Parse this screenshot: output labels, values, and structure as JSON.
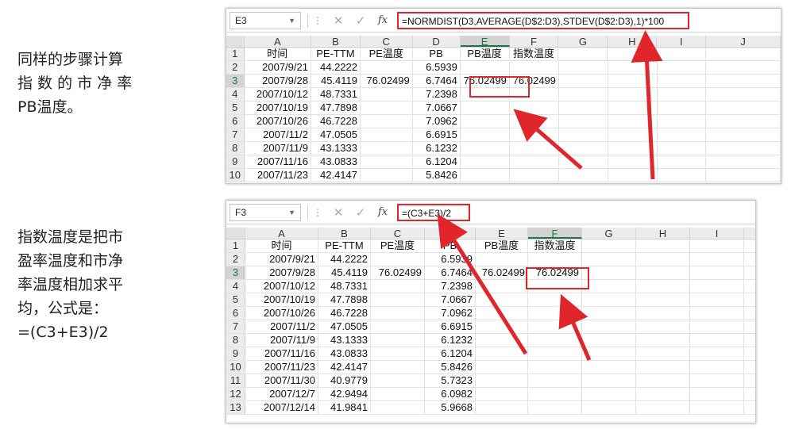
{
  "left_captions": {
    "first": "同样的步骤计算\n指 数 的 市 净 率\nPB温度。",
    "second": "指数温度是把市\n盈率温度和市净\n率温度相加求平\n均，公式是：\n=(C3+E3)/2"
  },
  "top_sheet": {
    "name_box": "E3",
    "formula": "=NORMDIST(D3,AVERAGE(D$2:D3),STDEV(D$2:D3),1)*100",
    "columns": [
      "A",
      "B",
      "C",
      "D",
      "E",
      "F",
      "G",
      "H",
      "I",
      "J"
    ],
    "selected_col": "E",
    "selected_row": "3",
    "rows": [
      {
        "n": "1",
        "a": "时间",
        "b": "PE-TTM",
        "c": "PE温度",
        "d": "PB",
        "e": "PB温度",
        "f": "指数温度"
      },
      {
        "n": "2",
        "a": "2007/9/21",
        "b": "44.2222",
        "c": "",
        "d": "6.5939",
        "e": "",
        "f": ""
      },
      {
        "n": "3",
        "a": "2007/9/28",
        "b": "45.4119",
        "c": "76.02499",
        "d": "6.7464",
        "e": "76.02499",
        "f": "76.02499"
      },
      {
        "n": "4",
        "a": "2007/10/12",
        "b": "48.7331",
        "c": "",
        "d": "7.2398",
        "e": "",
        "f": ""
      },
      {
        "n": "5",
        "a": "2007/10/19",
        "b": "47.7898",
        "c": "",
        "d": "7.0667",
        "e": "",
        "f": ""
      },
      {
        "n": "6",
        "a": "2007/10/26",
        "b": "46.7228",
        "c": "",
        "d": "7.0962",
        "e": "",
        "f": ""
      },
      {
        "n": "7",
        "a": "2007/11/2",
        "b": "47.0505",
        "c": "",
        "d": "6.6915",
        "e": "",
        "f": ""
      },
      {
        "n": "8",
        "a": "2007/11/9",
        "b": "43.1333",
        "c": "",
        "d": "6.1232",
        "e": "",
        "f": ""
      },
      {
        "n": "9",
        "a": "2007/11/16",
        "b": "43.0833",
        "c": "",
        "d": "6.1204",
        "e": "",
        "f": ""
      },
      {
        "n": "10",
        "a": "2007/11/23",
        "b": "42.4147",
        "c": "",
        "d": "5.8426",
        "e": "",
        "f": ""
      }
    ]
  },
  "bottom_sheet": {
    "name_box": "F3",
    "formula": "=(C3+E3)/2",
    "columns": [
      "A",
      "B",
      "C",
      "D",
      "E",
      "F",
      "G",
      "H",
      "I"
    ],
    "selected_col": "F",
    "selected_row": "3",
    "rows": [
      {
        "n": "1",
        "a": "时间",
        "b": "PE-TTM",
        "c": "PE温度",
        "d": "PB",
        "e": "PB温度",
        "f": "指数温度"
      },
      {
        "n": "2",
        "a": "2007/9/21",
        "b": "44.2222",
        "c": "",
        "d": "6.5939",
        "e": "",
        "f": ""
      },
      {
        "n": "3",
        "a": "2007/9/28",
        "b": "45.4119",
        "c": "76.02499",
        "d": "6.7464",
        "e": "76.02499",
        "f": "76.02499"
      },
      {
        "n": "4",
        "a": "2007/10/12",
        "b": "48.7331",
        "c": "",
        "d": "7.2398",
        "e": "",
        "f": ""
      },
      {
        "n": "5",
        "a": "2007/10/19",
        "b": "47.7898",
        "c": "",
        "d": "7.0667",
        "e": "",
        "f": ""
      },
      {
        "n": "6",
        "a": "2007/10/26",
        "b": "46.7228",
        "c": "",
        "d": "7.0962",
        "e": "",
        "f": ""
      },
      {
        "n": "7",
        "a": "2007/11/2",
        "b": "47.0505",
        "c": "",
        "d": "6.6915",
        "e": "",
        "f": ""
      },
      {
        "n": "8",
        "a": "2007/11/9",
        "b": "43.1333",
        "c": "",
        "d": "6.1232",
        "e": "",
        "f": ""
      },
      {
        "n": "9",
        "a": "2007/11/16",
        "b": "43.0833",
        "c": "",
        "d": "6.1204",
        "e": "",
        "f": ""
      },
      {
        "n": "10",
        "a": "2007/11/23",
        "b": "42.4147",
        "c": "",
        "d": "5.8426",
        "e": "",
        "f": ""
      },
      {
        "n": "11",
        "a": "2007/11/30",
        "b": "40.9779",
        "c": "",
        "d": "5.7323",
        "e": "",
        "f": ""
      },
      {
        "n": "12",
        "a": "2007/12/7",
        "b": "42.9494",
        "c": "",
        "d": "6.0982",
        "e": "",
        "f": ""
      },
      {
        "n": "13",
        "a": "2007/12/14",
        "b": "41.9841",
        "c": "",
        "d": "5.9668",
        "e": "",
        "f": ""
      }
    ]
  },
  "colors": {
    "highlight": "#e0262a",
    "excel_green": "#217346"
  }
}
